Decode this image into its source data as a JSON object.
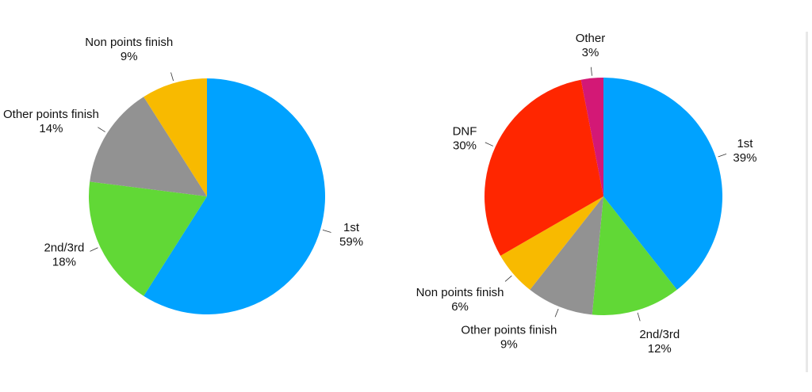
{
  "chart_data": [
    {
      "type": "pie",
      "title": "",
      "slices": [
        {
          "label": "1st",
          "value_label": "59%",
          "value": 59,
          "color": "#00a2ff"
        },
        {
          "label": "2nd/3rd",
          "value_label": "18%",
          "value": 18,
          "color": "#61d836"
        },
        {
          "label": "Other points finish",
          "value_label": "14%",
          "value": 14,
          "color": "#929292"
        },
        {
          "label": "Non points finish",
          "value_label": "9%",
          "value": 9,
          "color": "#f8ba00"
        }
      ]
    },
    {
      "type": "pie",
      "title": "",
      "slices": [
        {
          "label": "1st",
          "value_label": "39%",
          "value": 39,
          "color": "#00a2ff"
        },
        {
          "label": "2nd/3rd",
          "value_label": "12%",
          "value": 12,
          "color": "#61d836"
        },
        {
          "label": "Other points finish",
          "value_label": "9%",
          "value": 9,
          "color": "#929292"
        },
        {
          "label": "Non points finish",
          "value_label": "6%",
          "value": 6,
          "color": "#f8ba00"
        },
        {
          "label": "DNF",
          "value_label": "30%",
          "value": 30,
          "color": "#ff2600"
        },
        {
          "label": "Other",
          "value_label": "3%",
          "value": 3,
          "color": "#d31876"
        }
      ]
    }
  ]
}
